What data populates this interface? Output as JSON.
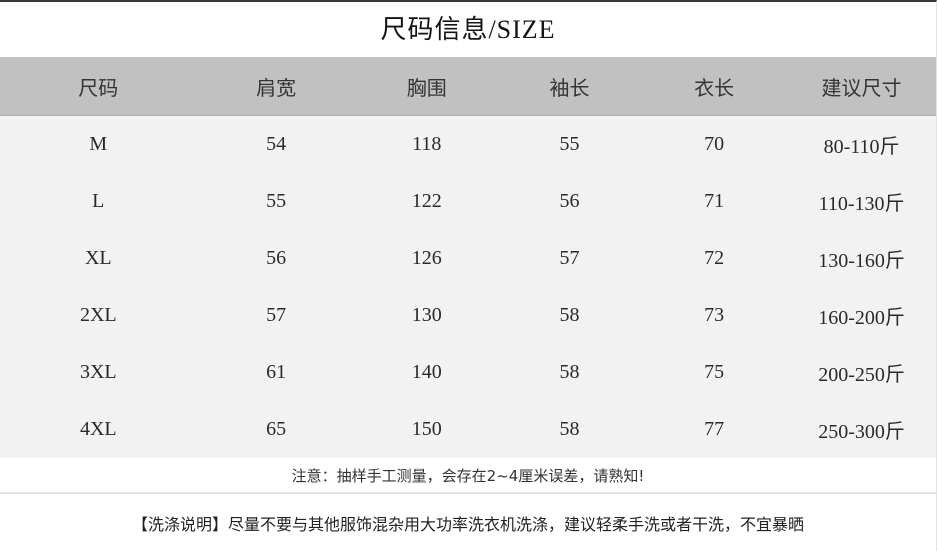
{
  "title": "尺码信息/SIZE",
  "table": {
    "columns": [
      "尺码",
      "肩宽",
      "胸围",
      "袖长",
      "衣长",
      "建议尺寸"
    ],
    "rows": [
      [
        "M",
        "54",
        "118",
        "55",
        "70",
        "80-110斤"
      ],
      [
        "L",
        "55",
        "122",
        "56",
        "71",
        "110-130斤"
      ],
      [
        "XL",
        "56",
        "126",
        "57",
        "72",
        "130-160斤"
      ],
      [
        "2XL",
        "57",
        "130",
        "58",
        "73",
        "160-200斤"
      ],
      [
        "3XL",
        "61",
        "140",
        "58",
        "75",
        "200-250斤"
      ],
      [
        "4XL",
        "65",
        "150",
        "58",
        "77",
        "250-300斤"
      ]
    ]
  },
  "note": "注意：抽样手工测量，会存在2~4厘米误差，请熟知!",
  "washing_instructions": "【洗涤说明】尽量不要与其他服饰混杂用大功率洗衣机洗涤，建议轻柔手洗或者干洗，不宜暴晒",
  "colors": {
    "header_bg": "#c1c1c2",
    "body_bg": "#f2f2f3",
    "top_border": "#3a3a3a",
    "divider": "#e2e2e3",
    "text": "#1f1f1f"
  }
}
